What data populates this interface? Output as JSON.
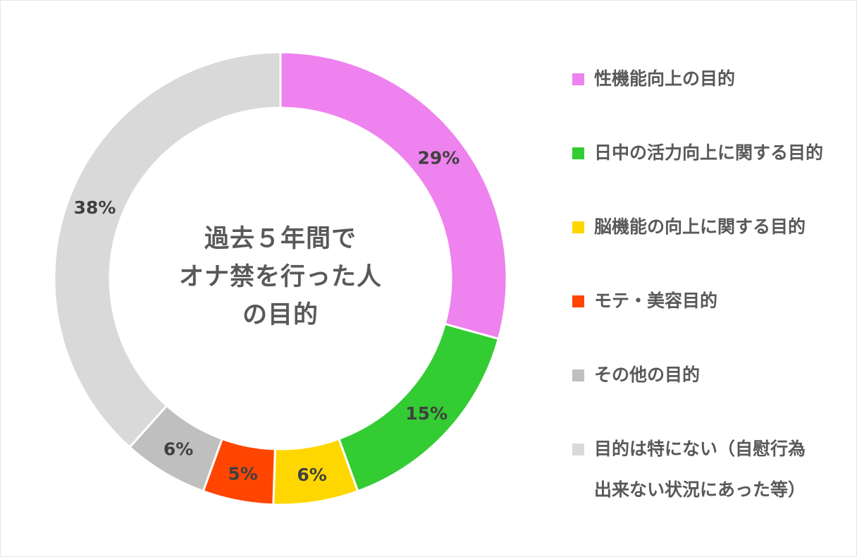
{
  "chart_data": {
    "type": "pie",
    "style": "donut",
    "center_title": "過去５年間で\nオナ禁を行った人\nの目的",
    "categories": [
      "性機能向上の目的",
      "日中の活力向上に関する目的",
      "脳機能の向上に関する目的",
      "モテ・美容目的",
      "その他の目的",
      "目的は特にない（自慰行為\n出来ない状況にあった等）"
    ],
    "values": [
      29,
      15,
      6,
      5,
      6,
      38
    ],
    "value_labels": [
      "29%",
      "15%",
      "6%",
      "5%",
      "6%",
      "38%"
    ],
    "colors": [
      "#ee82ee",
      "#33cc33",
      "#ffd700",
      "#ff4500",
      "#bfbfbf",
      "#d9d9d9"
    ],
    "legend_position": "right"
  }
}
